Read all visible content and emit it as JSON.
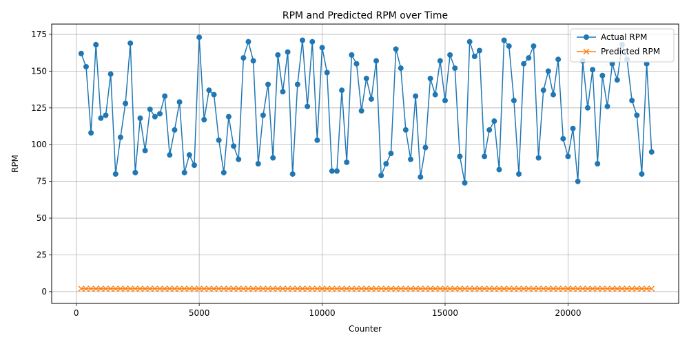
{
  "chart_data": {
    "type": "line",
    "title": "RPM and Predicted RPM over Time",
    "xlabel": "Counter",
    "ylabel": "RPM",
    "xlim": [
      -1000,
      24500
    ],
    "ylim": [
      -8,
      182
    ],
    "xticks": [
      0,
      5000,
      10000,
      15000,
      20000
    ],
    "xtick_labels": [
      "0",
      "5000",
      "10000",
      "15000",
      "20000"
    ],
    "yticks": [
      0,
      25,
      50,
      75,
      100,
      125,
      150,
      175
    ],
    "ytick_labels": [
      "0",
      "25",
      "50",
      "75",
      "100",
      "125",
      "150",
      "175"
    ],
    "grid": true,
    "legend_position": "upper right",
    "x": [
      200,
      400,
      600,
      800,
      1000,
      1200,
      1400,
      1600,
      1800,
      2000,
      2200,
      2400,
      2600,
      2800,
      3000,
      3200,
      3400,
      3600,
      3800,
      4000,
      4200,
      4400,
      4600,
      4800,
      5000,
      5200,
      5400,
      5600,
      5800,
      6000,
      6200,
      6400,
      6600,
      6800,
      7000,
      7200,
      7400,
      7600,
      7800,
      8000,
      8200,
      8400,
      8600,
      8800,
      9000,
      9200,
      9400,
      9600,
      9800,
      10000,
      10200,
      10400,
      10600,
      10800,
      11000,
      11200,
      11400,
      11600,
      11800,
      12000,
      12200,
      12400,
      12600,
      12800,
      13000,
      13200,
      13400,
      13600,
      13800,
      14000,
      14200,
      14400,
      14600,
      14800,
      15000,
      15200,
      15400,
      15600,
      15800,
      16000,
      16200,
      16400,
      16600,
      16800,
      17000,
      17200,
      17400,
      17600,
      17800,
      18000,
      18200,
      18400,
      18600,
      18800,
      19000,
      19200,
      19400,
      19600,
      19800,
      20000,
      20200,
      20400,
      20600,
      20800,
      21000,
      21200,
      21400,
      21600,
      21800,
      22000,
      22200,
      22400,
      22600,
      22800,
      23000,
      23200,
      23400
    ],
    "series": [
      {
        "name": "Actual RPM",
        "color": "#1f77b4",
        "marker": "circle",
        "values": [
          162,
          153,
          108,
          168,
          118,
          120,
          148,
          80,
          105,
          128,
          169,
          81,
          118,
          96,
          124,
          119,
          121,
          133,
          93,
          110,
          129,
          81,
          93,
          86,
          173,
          117,
          137,
          134,
          103,
          81,
          119,
          99,
          90,
          159,
          170,
          157,
          87,
          120,
          141,
          91,
          161,
          136,
          163,
          80,
          141,
          171,
          126,
          170,
          103,
          166,
          149,
          82,
          82,
          137,
          88,
          161,
          155,
          123,
          145,
          131,
          157,
          79,
          87,
          94,
          165,
          152,
          110,
          90,
          133,
          78,
          98,
          145,
          134,
          157,
          130,
          161,
          152,
          92,
          74,
          170,
          160,
          164,
          92,
          110,
          116,
          83,
          171,
          167,
          130,
          80,
          155,
          159,
          167,
          91,
          137,
          150,
          134,
          158,
          104,
          92,
          111,
          75,
          157,
          125,
          151,
          87,
          147,
          126,
          155,
          144,
          168,
          158,
          130,
          120,
          80,
          155,
          95
        ]
      },
      {
        "name": "Predicted RPM",
        "color": "#ff7f0e",
        "marker": "x",
        "values": [
          2,
          2,
          2,
          2,
          2,
          2,
          2,
          2,
          2,
          2,
          2,
          2,
          2,
          2,
          2,
          2,
          2,
          2,
          2,
          2,
          2,
          2,
          2,
          2,
          2,
          2,
          2,
          2,
          2,
          2,
          2,
          2,
          2,
          2,
          2,
          2,
          2,
          2,
          2,
          2,
          2,
          2,
          2,
          2,
          2,
          2,
          2,
          2,
          2,
          2,
          2,
          2,
          2,
          2,
          2,
          2,
          2,
          2,
          2,
          2,
          2,
          2,
          2,
          2,
          2,
          2,
          2,
          2,
          2,
          2,
          2,
          2,
          2,
          2,
          2,
          2,
          2,
          2,
          2,
          2,
          2,
          2,
          2,
          2,
          2,
          2,
          2,
          2,
          2,
          2,
          2,
          2,
          2,
          2,
          2,
          2,
          2,
          2,
          2,
          2,
          2,
          2,
          2,
          2,
          2,
          2,
          2,
          2,
          2,
          2,
          2,
          2,
          2,
          2,
          2,
          2,
          2
        ]
      }
    ]
  }
}
